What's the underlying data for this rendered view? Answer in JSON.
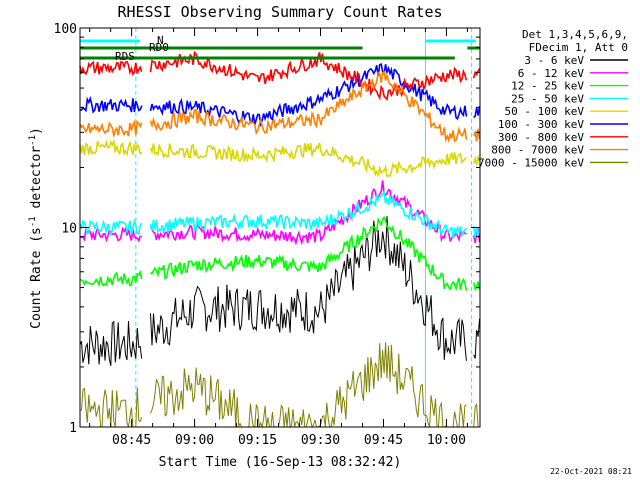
{
  "chart_data": {
    "type": "line",
    "title": "RHESSI Observing Summary Count Rates",
    "xlabel": "Start Time (16-Sep-13 08:32:42)",
    "ylabel": "Count Rate (s",
    "ylabel_sup": "-1",
    "ylabel_tail": " detector",
    "ylabel_close": ")",
    "y_scale": "log",
    "ylim": [
      1,
      100
    ],
    "xlim": [
      "08:32:42",
      "10:08:00"
    ],
    "x_ticks": [
      "08:45",
      "09:00",
      "09:15",
      "09:30",
      "09:45",
      "10:00"
    ],
    "y_ticks": [
      "1",
      "10",
      "100"
    ],
    "legend_header": [
      "Det 1,3,4,5,6,9,",
      "FDecim 1, Att 0"
    ],
    "legend_position": "right",
    "series": [
      {
        "name": "3 - 6 keV",
        "color": "#000000",
        "values_at_ticks": [
          2.6,
          3.9,
          4.0,
          3.8,
          9.5,
          2.7
        ]
      },
      {
        "name": "6 - 12 keV",
        "color": "#ff00ff",
        "values_at_ticks": [
          9.2,
          9.5,
          9.2,
          9.0,
          16.0,
          9.0
        ]
      },
      {
        "name": "12 - 25 keV",
        "color": "#00ff00",
        "values_at_ticks": [
          5.5,
          6.5,
          6.8,
          6.3,
          11.0,
          5.2
        ]
      },
      {
        "name": "25 - 50 keV",
        "color": "#00ffff",
        "values_at_ticks": [
          10.0,
          10.5,
          10.8,
          10.4,
          14.0,
          9.5
        ]
      },
      {
        "name": "50 - 100 keV",
        "color": "#d8d800",
        "values_at_ticks": [
          25.0,
          24.0,
          23.0,
          25.0,
          19.0,
          22.0
        ]
      },
      {
        "name": "100 - 300 keV",
        "color": "#0000ff",
        "values_at_ticks": [
          41.0,
          40.0,
          35.0,
          44.0,
          63.0,
          38.0
        ]
      },
      {
        "name": "300 - 800 keV",
        "color": "#ff0000",
        "values_at_ticks": [
          63.0,
          70.0,
          55.0,
          70.0,
          47.0,
          58.0
        ]
      },
      {
        "name": "800 - 7000 keV",
        "color": "#ff8000",
        "values_at_ticks": [
          31.0,
          36.0,
          32.0,
          35.0,
          58.0,
          29.0
        ]
      },
      {
        "name": "7000 - 15000 keV",
        "color": "#808000",
        "values_at_ticks": [
          1.2,
          1.6,
          1.0,
          1.0,
          2.2,
          1.0
        ]
      }
    ],
    "annotations": {
      "flags": [
        "N",
        "RD0",
        "RDS"
      ],
      "footer_date": "22-Oct-2021 08:21"
    },
    "colors": {
      "axis": "#000000",
      "night_markers": "#00ffff",
      "flag_bars": "#008000"
    }
  }
}
